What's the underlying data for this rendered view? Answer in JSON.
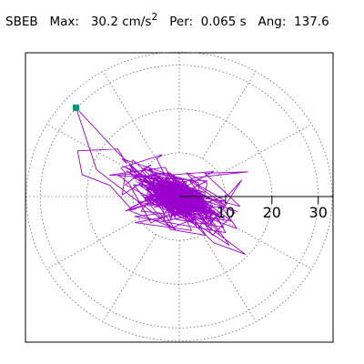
{
  "header": {
    "station": "SBEB",
    "max_label": "Max:",
    "max_value": "30.2 cm/s",
    "max_exp": "2",
    "per_label": "Per:",
    "per_value": "0.065 s",
    "ang_label": "Ang:",
    "ang_value": "137.6"
  },
  "chart_data": {
    "type": "polar-orbit",
    "radial_ticks": [
      "10",
      "20",
      "30"
    ],
    "radial_tick_values": [
      10,
      20,
      30
    ],
    "rmax": 33,
    "angular_grid_deg": [
      0,
      30,
      60,
      90,
      120,
      150,
      180,
      210,
      240,
      270,
      300,
      330
    ],
    "grid": true,
    "trace_color": "#9900cc",
    "peak_marker_color": "#009977",
    "peak": {
      "x": -22.3,
      "y": 20.3,
      "magnitude": 30.2,
      "angle_deg": 137.6
    },
    "trace_seed": 42,
    "trace_points": 900
  }
}
